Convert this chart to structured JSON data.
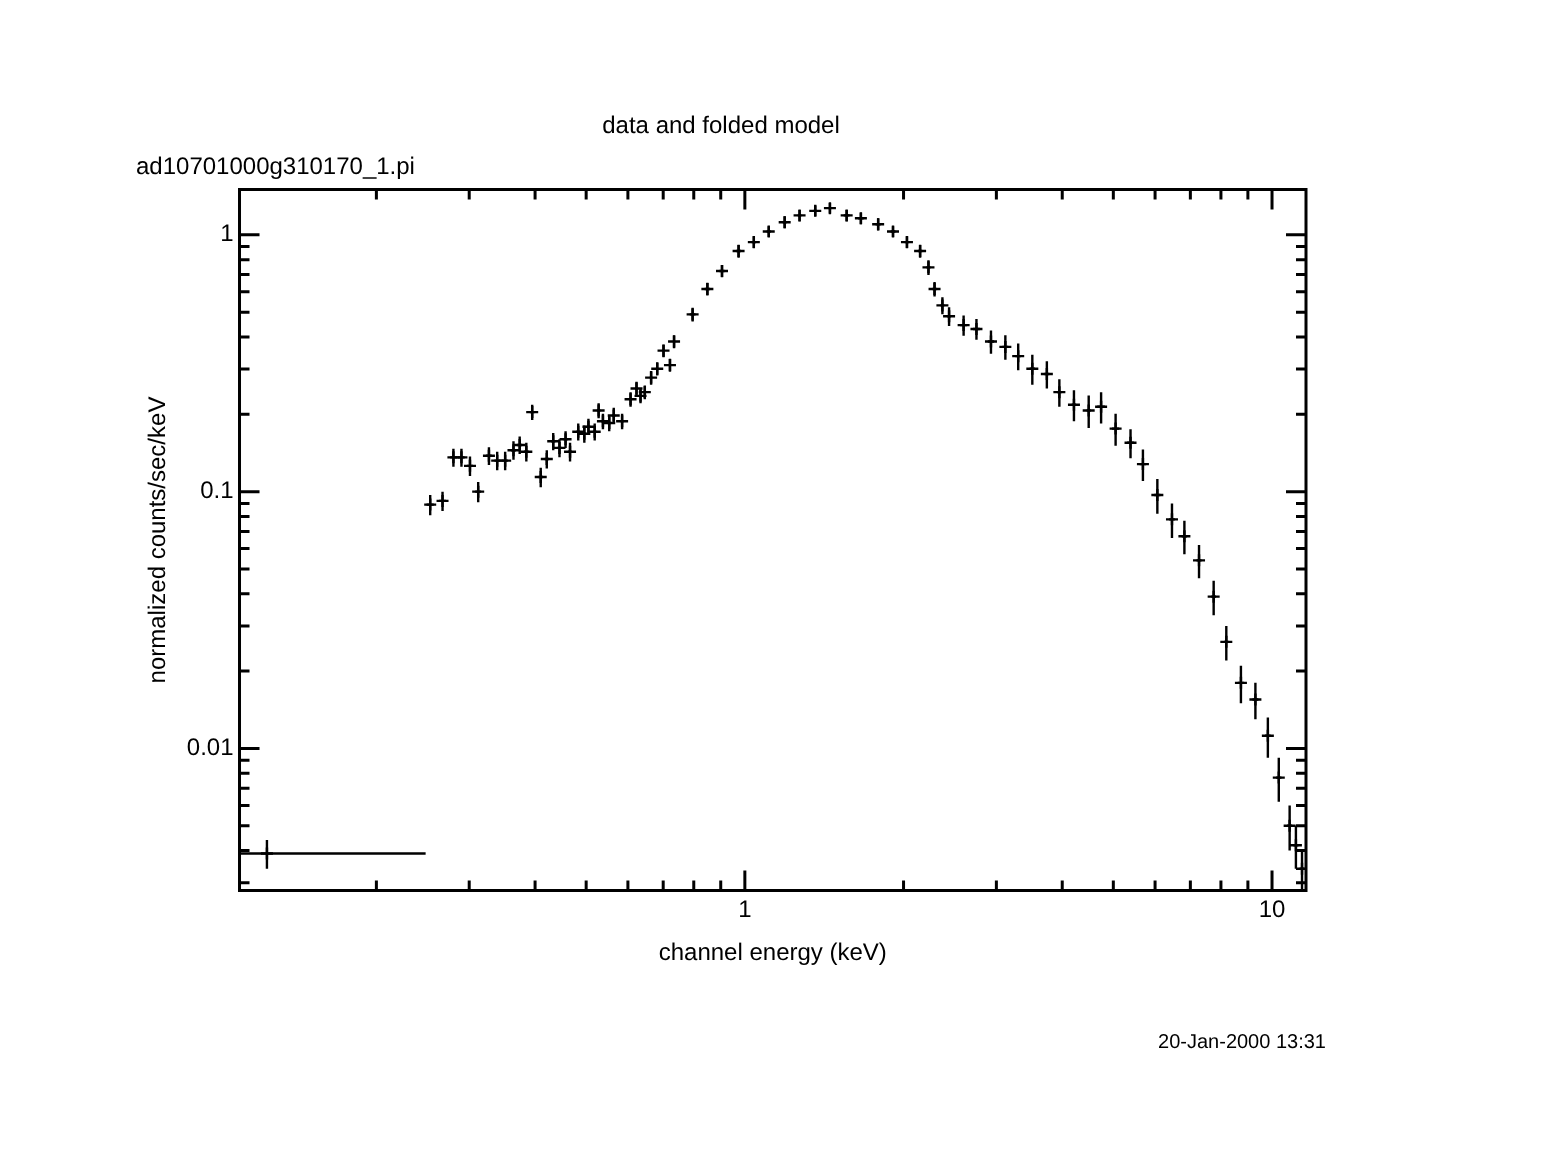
{
  "chart_data": {
    "type": "scatter",
    "title": "data and folded model",
    "subtitle": "ad10701000g310170_1.pi",
    "xlabel": "channel energy (keV)",
    "ylabel": "normalized counts/sec/keV",
    "annotations": [
      "20-Jan-2000 13:31"
    ],
    "log": "xy",
    "marker": "cross",
    "xlim": [
      0.11,
      11.6
    ],
    "ylim": [
      0.0028,
      1.5
    ],
    "xticks": [
      {
        "value": 0.2,
        "label": null
      },
      {
        "value": 0.3,
        "label": null
      },
      {
        "value": 0.4,
        "label": null
      },
      {
        "value": 0.5,
        "label": null
      },
      {
        "value": 0.6,
        "label": null
      },
      {
        "value": 0.7,
        "label": null
      },
      {
        "value": 0.8,
        "label": null
      },
      {
        "value": 0.9,
        "label": null
      },
      1,
      {
        "value": 2,
        "label": null
      },
      {
        "value": 3,
        "label": null
      },
      {
        "value": 4,
        "label": null
      },
      {
        "value": 5,
        "label": null
      },
      {
        "value": 6,
        "label": null
      },
      {
        "value": 7,
        "label": null
      },
      {
        "value": 8,
        "label": null
      },
      {
        "value": 9,
        "label": null
      },
      10
    ],
    "yticks": [
      {
        "value": 0.003,
        "label": null
      },
      {
        "value": 0.004,
        "label": null
      },
      {
        "value": 0.005,
        "label": null
      },
      {
        "value": 0.006,
        "label": null
      },
      {
        "value": 0.007,
        "label": null
      },
      {
        "value": 0.008,
        "label": null
      },
      {
        "value": 0.009,
        "label": null
      },
      0.01,
      {
        "value": 0.02,
        "label": null
      },
      {
        "value": 0.03,
        "label": null
      },
      {
        "value": 0.04,
        "label": null
      },
      {
        "value": 0.05,
        "label": null
      },
      {
        "value": 0.06,
        "label": null
      },
      {
        "value": 0.07,
        "label": null
      },
      {
        "value": 0.08,
        "label": null
      },
      {
        "value": 0.09,
        "label": null
      },
      0.1,
      {
        "value": 0.2,
        "label": null
      },
      {
        "value": 0.3,
        "label": null
      },
      {
        "value": 0.4,
        "label": null
      },
      {
        "value": 0.5,
        "label": null
      },
      {
        "value": 0.6,
        "label": null
      },
      {
        "value": 0.7,
        "label": null
      },
      {
        "value": 0.8,
        "label": null
      },
      {
        "value": 0.9,
        "label": null
      },
      1
    ],
    "series": [
      {
        "color": "#000000",
        "x": [
          0.124,
          0.253,
          0.267,
          0.28,
          0.29,
          0.301,
          0.312,
          0.327,
          0.339,
          0.351,
          0.364,
          0.374,
          0.385,
          0.395,
          0.41,
          0.421,
          0.433,
          0.445,
          0.457,
          0.466,
          0.483,
          0.496,
          0.505,
          0.519,
          0.528,
          0.538,
          0.553,
          0.564,
          0.585,
          0.607,
          0.623,
          0.634,
          0.646,
          0.664,
          0.682,
          0.701,
          0.721,
          0.734,
          0.796,
          0.849,
          0.905,
          0.973,
          1.04,
          1.11,
          1.19,
          1.27,
          1.36,
          1.45,
          1.56,
          1.66,
          1.79,
          1.91,
          2.03,
          2.15,
          2.23,
          2.29,
          2.37,
          2.44,
          2.6,
          2.75,
          2.93,
          3.12,
          3.3,
          3.51,
          3.74,
          3.95,
          4.21,
          4.49,
          4.74,
          5.05,
          5.39,
          5.69,
          6.06,
          6.46,
          6.82,
          7.27,
          7.75,
          8.19,
          8.73,
          9.3,
          9.82,
          10.3,
          10.8,
          11.1,
          11.4
        ],
        "values": [
          0.0039,
          0.089,
          0.092,
          0.136,
          0.136,
          0.126,
          0.1,
          0.138,
          0.132,
          0.132,
          0.145,
          0.152,
          0.143,
          0.204,
          0.114,
          0.134,
          0.157,
          0.148,
          0.16,
          0.143,
          0.171,
          0.168,
          0.179,
          0.171,
          0.207,
          0.188,
          0.185,
          0.198,
          0.188,
          0.229,
          0.252,
          0.236,
          0.244,
          0.278,
          0.301,
          0.354,
          0.311,
          0.384,
          0.49,
          0.615,
          0.723,
          0.865,
          0.937,
          1.03,
          1.12,
          1.19,
          1.24,
          1.27,
          1.19,
          1.16,
          1.1,
          1.03,
          0.937,
          0.865,
          0.747,
          0.615,
          0.531,
          0.482,
          0.445,
          0.43,
          0.384,
          0.366,
          0.337,
          0.301,
          0.287,
          0.244,
          0.218,
          0.207,
          0.214,
          0.176,
          0.155,
          0.128,
          0.097,
          0.078,
          0.067,
          0.054,
          0.039,
          0.026,
          0.018,
          0.0155,
          0.0112,
          0.0077,
          0.005,
          0.0042,
          0.0034
        ],
        "errors": [
          0.0005,
          0.008,
          0.008,
          0.011,
          0.011,
          0.011,
          0.009,
          0.011,
          0.011,
          0.011,
          0.012,
          0.012,
          0.012,
          0.014,
          0.01,
          0.011,
          0.012,
          0.012,
          0.012,
          0.012,
          0.013,
          0.013,
          0.013,
          0.013,
          0.014,
          0.013,
          0.013,
          0.014,
          0.013,
          0.015,
          0.016,
          0.015,
          0.015,
          0.017,
          0.018,
          0.02,
          0.018,
          0.022,
          0.03,
          0.035,
          0.04,
          0.05,
          0.05,
          0.05,
          0.06,
          0.06,
          0.06,
          0.06,
          0.06,
          0.06,
          0.06,
          0.05,
          0.05,
          0.05,
          0.05,
          0.04,
          0.04,
          0.04,
          0.04,
          0.04,
          0.04,
          0.04,
          0.04,
          0.04,
          0.035,
          0.03,
          0.03,
          0.03,
          0.03,
          0.025,
          0.02,
          0.018,
          0.015,
          0.012,
          0.01,
          0.008,
          0.006,
          0.004,
          0.003,
          0.0025,
          0.002,
          0.0015,
          0.001,
          0.0008,
          0.0006
        ],
        "xerrors": [
          [
            0.11,
            0.248
          ],
          0.004,
          0.004,
          0.004,
          0.004,
          0.004,
          0.004,
          0.004,
          0.004,
          0.004,
          0.004,
          0.004,
          0.004,
          0.004,
          0.004,
          0.004,
          0.004,
          0.004,
          0.004,
          0.004,
          0.004,
          0.004,
          0.004,
          0.004,
          0.004,
          0.004,
          0.004,
          0.004,
          0.004,
          0.004,
          0.004,
          0.004,
          0.004,
          0.004,
          0.004,
          0.004,
          0.004,
          0.004,
          0.01,
          0.01,
          0.01,
          0.01,
          0.01,
          0.01,
          0.01,
          0.01,
          0.01,
          0.01,
          0.02,
          0.02,
          0.02,
          0.02,
          0.02,
          0.02,
          0.02,
          0.02,
          0.02,
          0.02,
          0.04,
          0.04,
          0.04,
          0.04,
          0.04,
          0.04,
          0.04,
          0.04,
          0.04,
          0.04,
          0.08,
          0.08,
          0.08,
          0.08,
          0.08,
          0.08,
          0.08,
          0.08,
          0.08,
          0.08,
          0.12,
          0.12,
          0.12,
          0.12,
          0.12,
          0.12,
          0.12
        ]
      }
    ]
  }
}
